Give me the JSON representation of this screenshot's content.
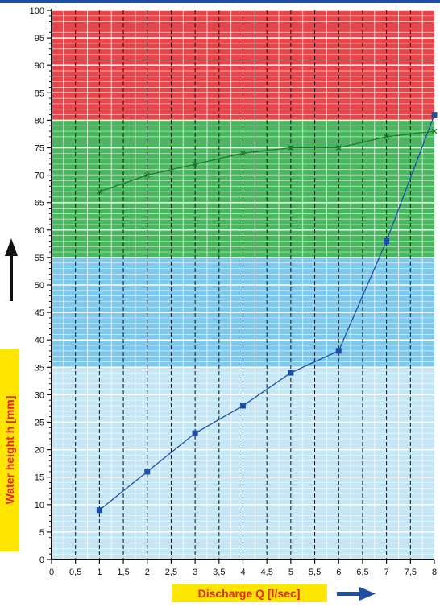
{
  "chart_data": {
    "type": "line",
    "xlabel": "Discharge Q [l/sec]",
    "ylabel": "Water height h [mm]",
    "xlim": [
      0,
      8
    ],
    "ylim": [
      0,
      100
    ],
    "x_ticks": [
      "0",
      "0,5",
      "1",
      "1,5",
      "2",
      "2,5",
      "3",
      "3,5",
      "4",
      "4,5",
      "5",
      "5,5",
      "6",
      "6,5",
      "7",
      "7,5",
      "8"
    ],
    "y_ticks": [
      "0",
      "5",
      "10",
      "15",
      "20",
      "25",
      "30",
      "35",
      "40",
      "45",
      "50",
      "55",
      "60",
      "65",
      "70",
      "75",
      "80",
      "85",
      "90",
      "95",
      "100"
    ],
    "grid": true,
    "bands": [
      {
        "from": 0,
        "to": 35,
        "color": "#c5e6f5"
      },
      {
        "from": 35,
        "to": 55,
        "color": "#7ec8ec"
      },
      {
        "from": 55,
        "to": 80,
        "color": "#48b75e"
      },
      {
        "from": 80,
        "to": 100,
        "color": "#e8454a"
      }
    ],
    "series": [
      {
        "marker": "square",
        "color": "#1e4fa6",
        "points": [
          [
            1,
            9
          ],
          [
            2,
            16
          ],
          [
            3,
            23
          ],
          [
            4,
            28
          ],
          [
            5,
            34
          ],
          [
            6,
            38
          ],
          [
            7,
            58
          ],
          [
            8,
            81
          ]
        ]
      },
      {
        "marker": "x",
        "color": "#1f7a2e",
        "points": [
          [
            1,
            67
          ],
          [
            2,
            70
          ],
          [
            3,
            72
          ],
          [
            4,
            74
          ],
          [
            5,
            75
          ],
          [
            6,
            75
          ],
          [
            7,
            77
          ],
          [
            8,
            78
          ]
        ]
      }
    ],
    "colors": {
      "label_background": "#ffe600",
      "label_text": "#e8231b",
      "arrow": "#1e4fa6",
      "top_bar": "#1e4fa6"
    }
  }
}
